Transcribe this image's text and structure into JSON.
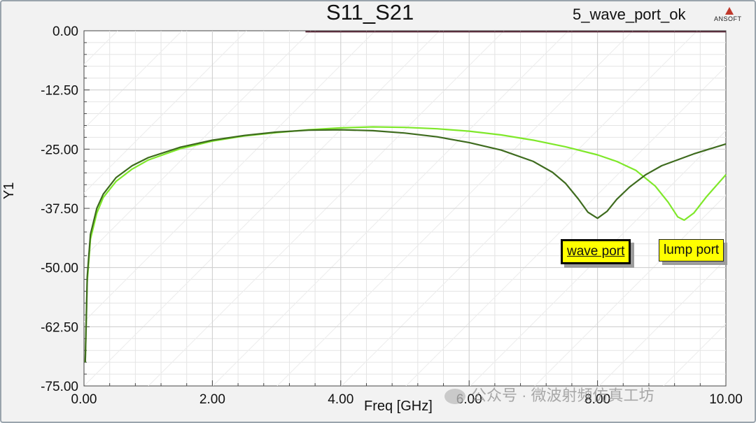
{
  "report": {
    "title": "S11_S21",
    "design_name": "5_wave_port_ok",
    "brand": "ANSOFT"
  },
  "watermark": "公众号 · 微波射频仿真工坊",
  "markers": [
    {
      "label": "wave port",
      "active": true
    },
    {
      "label": "lump port",
      "active": false
    }
  ],
  "chart_data": {
    "type": "line",
    "title": "S11_S21",
    "xlabel": "Freq [GHz]",
    "ylabel": "Y1",
    "xlim": [
      0,
      10
    ],
    "ylim": [
      -75,
      0
    ],
    "x_ticks": [
      "0.00",
      "2.00",
      "4.00",
      "6.00",
      "8.00",
      "10.00"
    ],
    "y_ticks": [
      "0.00",
      "-12.50",
      "-25.00",
      "-37.50",
      "-50.00",
      "-62.50",
      "-75.00"
    ],
    "grid": true,
    "colors": {
      "wave_port": "#3e6b1e",
      "lump_port": "#7fe82a",
      "top_line": "#5a2a3a"
    },
    "series": [
      {
        "name": "wave port",
        "color": "#3e6b1e",
        "x": [
          0.02,
          0.05,
          0.1,
          0.2,
          0.3,
          0.5,
          0.75,
          1.0,
          1.5,
          2.0,
          2.5,
          3.0,
          3.5,
          4.0,
          4.5,
          5.0,
          5.5,
          6.0,
          6.5,
          7.0,
          7.3,
          7.5,
          7.7,
          7.85,
          8.0,
          8.15,
          8.3,
          8.5,
          8.75,
          9.0,
          9.5,
          10.0
        ],
        "y": [
          -70,
          -52,
          -43,
          -37.5,
          -34.5,
          -31,
          -28.5,
          -26.8,
          -24.6,
          -23.1,
          -22.1,
          -21.4,
          -21.0,
          -20.9,
          -21.1,
          -21.6,
          -22.4,
          -23.6,
          -25.2,
          -27.6,
          -29.9,
          -32.2,
          -35.5,
          -38.3,
          -39.6,
          -38.1,
          -35.6,
          -33.0,
          -30.4,
          -28.5,
          -26.0,
          -23.9
        ]
      },
      {
        "name": "lump port",
        "color": "#7fe82a",
        "x": [
          0.02,
          0.05,
          0.1,
          0.2,
          0.3,
          0.5,
          0.75,
          1.0,
          1.5,
          2.0,
          2.5,
          3.0,
          3.5,
          4.0,
          4.5,
          5.0,
          5.5,
          6.0,
          6.5,
          7.0,
          7.5,
          8.0,
          8.3,
          8.6,
          8.9,
          9.1,
          9.25,
          9.35,
          9.5,
          9.7,
          10.0
        ],
        "y": [
          -70,
          -53,
          -44,
          -38.5,
          -35.2,
          -31.8,
          -29.2,
          -27.3,
          -24.9,
          -23.3,
          -22.2,
          -21.5,
          -20.9,
          -20.5,
          -20.3,
          -20.4,
          -20.7,
          -21.2,
          -22.0,
          -23.1,
          -24.5,
          -26.2,
          -27.6,
          -29.5,
          -32.8,
          -36.2,
          -39.3,
          -40.0,
          -38.5,
          -35.0,
          -30.4
        ]
      },
      {
        "name": "",
        "color": "#5a2a3a",
        "x": [
          3.45,
          10.0
        ],
        "y": [
          -0.2,
          -0.2
        ]
      }
    ]
  }
}
